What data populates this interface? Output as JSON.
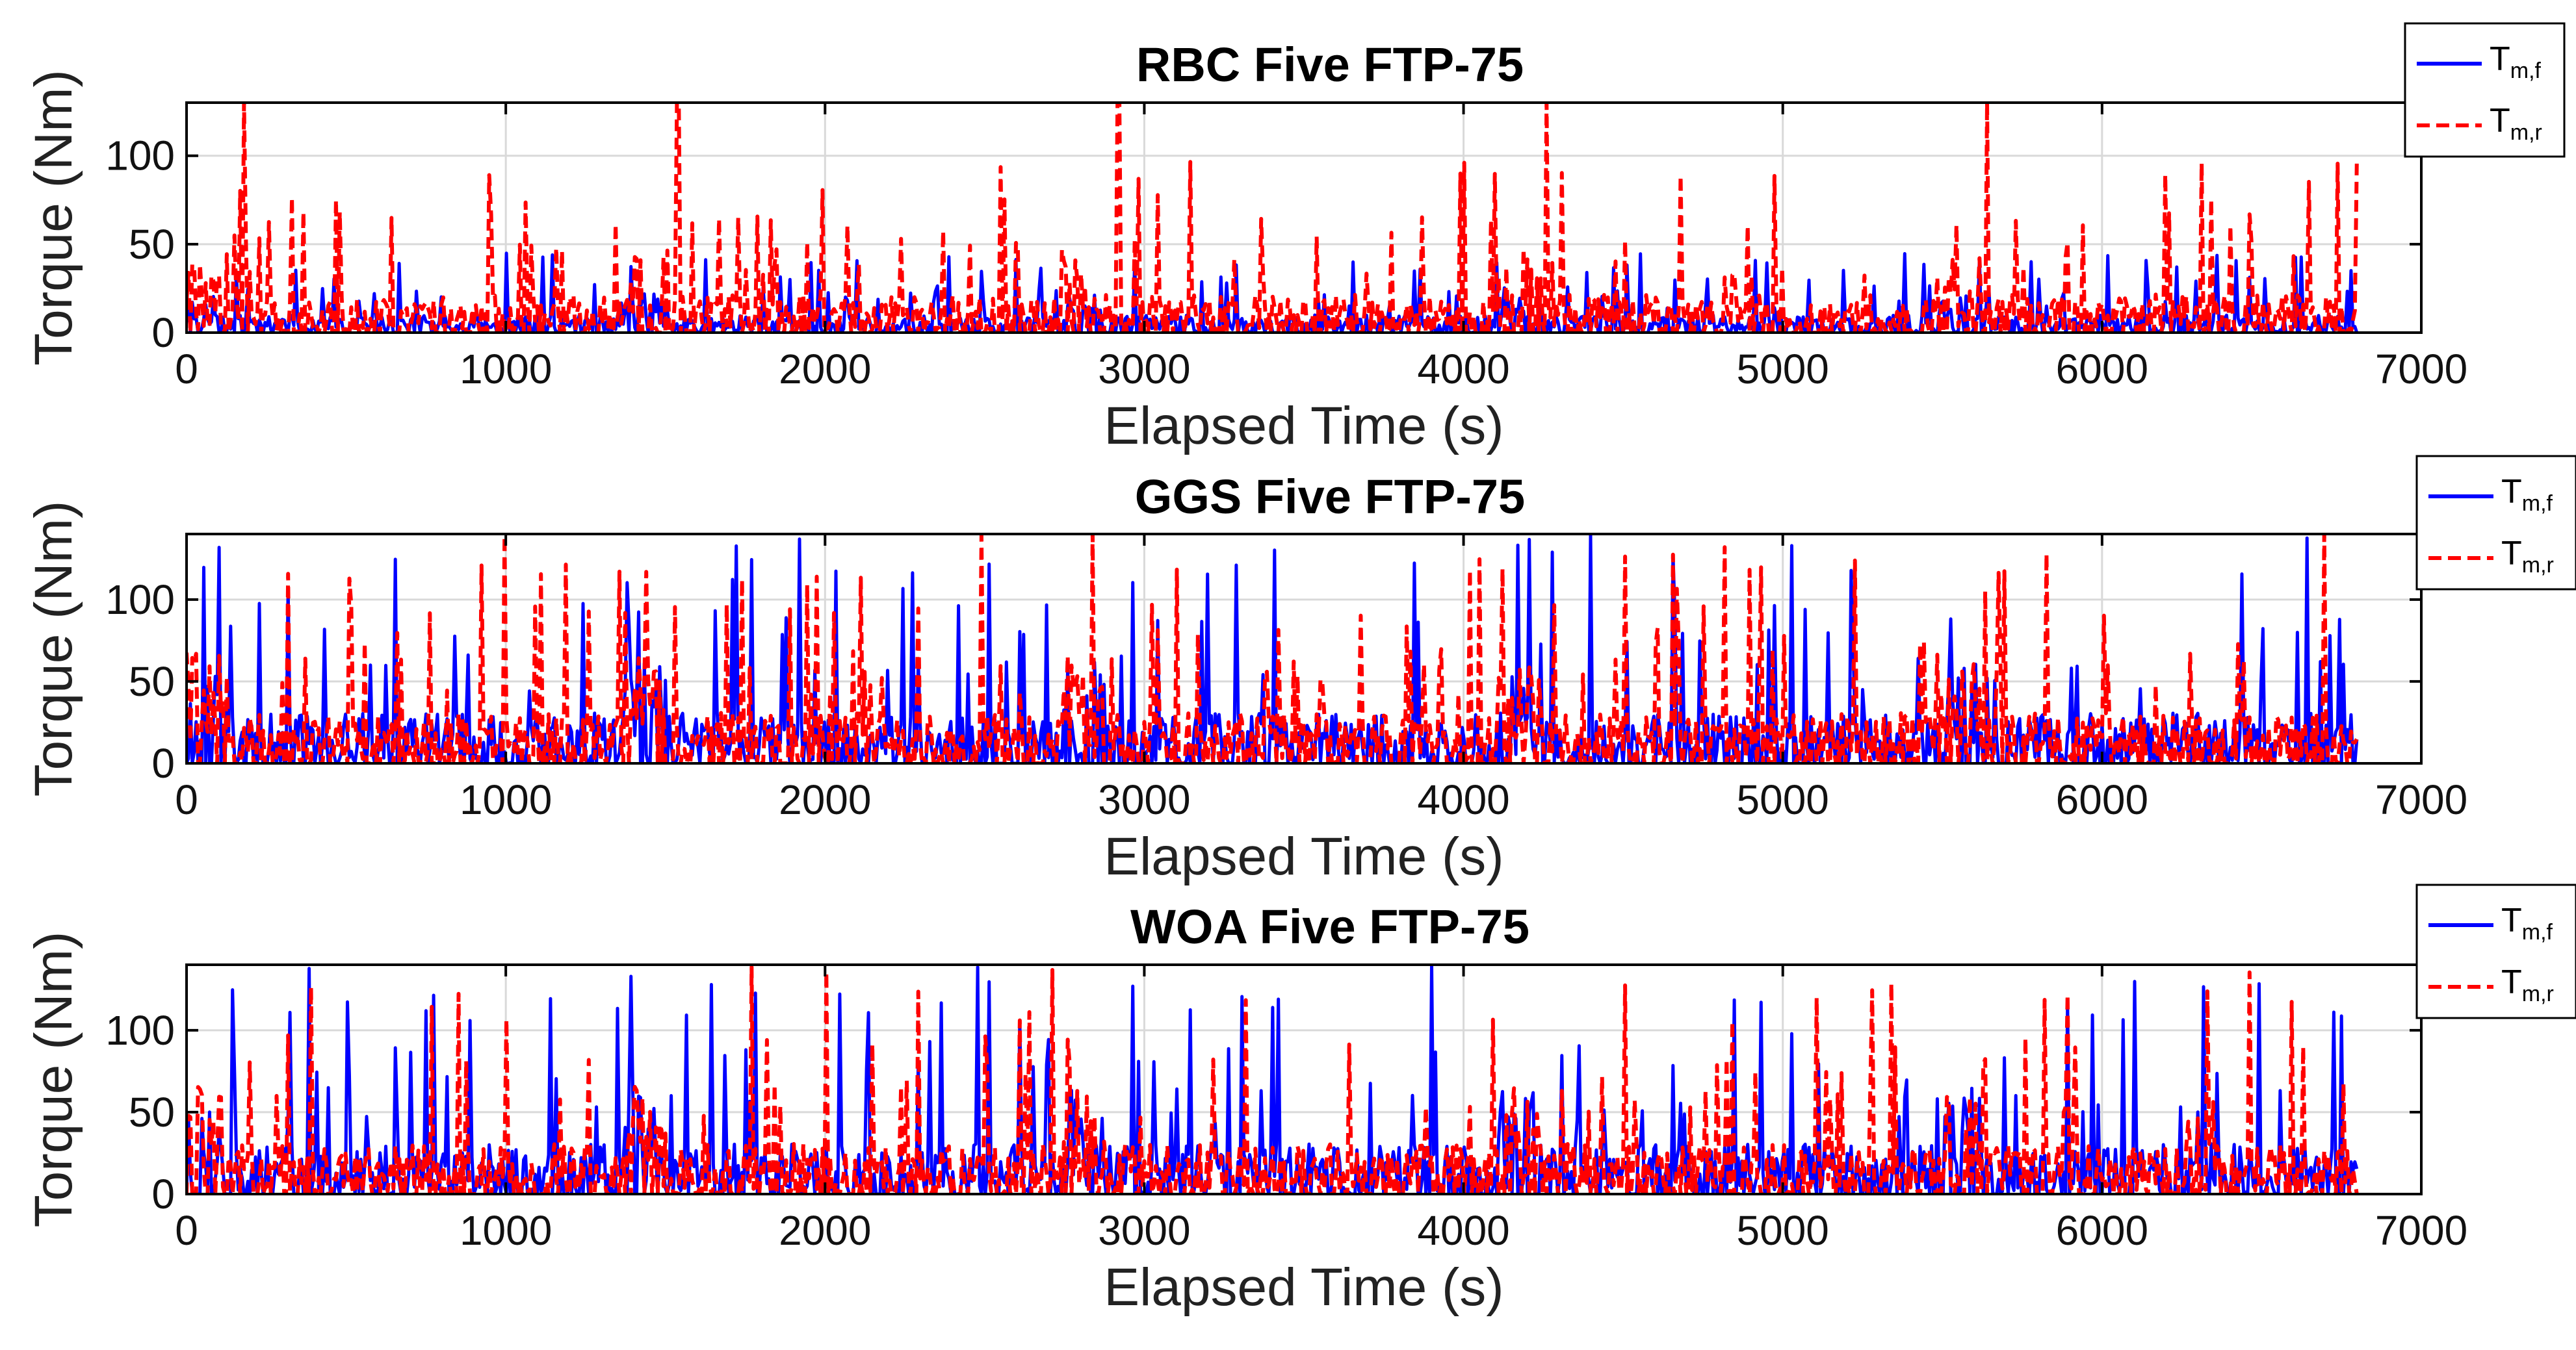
{
  "colors": {
    "front": "#0000ff",
    "rear": "#ff0000",
    "grid": "#d9d9d9",
    "axis": "#000000"
  },
  "chart_data": [
    {
      "type": "line",
      "title": "RBC Five FTP-75",
      "xlabel": "Elapsed Time (s)",
      "ylabel": "Torque (Nm)",
      "xlim": [
        0,
        7000
      ],
      "ylim": [
        0,
        130
      ],
      "xticks": [
        0,
        1000,
        2000,
        3000,
        4000,
        5000,
        6000,
        7000
      ],
      "xtick_labels": [
        "0",
        "1000",
        "2000",
        "3000",
        "4000",
        "5000",
        "6000",
        "7000"
      ],
      "yticks": [
        0,
        50,
        100
      ],
      "ytick_labels": [
        "0",
        "50",
        "100"
      ],
      "grid": true,
      "legend_position": "top-right outside",
      "series": [
        {
          "name": "T_m,f",
          "label_base": "T",
          "label_sub": "m,f",
          "style": "solid",
          "color": "#0000ff",
          "peak": 45,
          "seed": 11
        },
        {
          "name": "T_m,r",
          "label_base": "T",
          "label_sub": "m,r",
          "style": "dashed",
          "color": "#ff0000",
          "peak": 98,
          "spikes_at": [
            180,
            1540,
            2920,
            4260,
            5640
          ],
          "spike_value": 130,
          "seed": 23
        }
      ]
    },
    {
      "type": "line",
      "title": "GGS Five FTP-75",
      "xlabel": "Elapsed Time (s)",
      "ylabel": "Torque (Nm)",
      "xlim": [
        0,
        7000
      ],
      "ylim": [
        0,
        140
      ],
      "xticks": [
        0,
        1000,
        2000,
        3000,
        4000,
        5000,
        6000,
        7000
      ],
      "xtick_labels": [
        "0",
        "1000",
        "2000",
        "3000",
        "4000",
        "5000",
        "6000",
        "7000"
      ],
      "yticks": [
        0,
        50,
        100
      ],
      "ytick_labels": [
        "0",
        "50",
        "100"
      ],
      "grid": true,
      "legend_position": "top-right outside",
      "series": [
        {
          "name": "T_m,f",
          "label_base": "T",
          "label_sub": "m,f",
          "style": "solid",
          "color": "#0000ff",
          "peak": 140,
          "seed": 37
        },
        {
          "name": "T_m,r",
          "label_base": "T",
          "label_sub": "m,r",
          "style": "dashed",
          "color": "#ff0000",
          "peak": 140,
          "seed": 41
        }
      ]
    },
    {
      "type": "line",
      "title": "WOA Five FTP-75",
      "xlabel": "Elapsed Time (s)",
      "ylabel": "Torque (Nm)",
      "xlim": [
        0,
        7000
      ],
      "ylim": [
        0,
        140
      ],
      "xticks": [
        0,
        1000,
        2000,
        3000,
        4000,
        5000,
        6000,
        7000
      ],
      "xtick_labels": [
        "0",
        "1000",
        "2000",
        "3000",
        "4000",
        "5000",
        "6000",
        "7000"
      ],
      "yticks": [
        0,
        50,
        100
      ],
      "ytick_labels": [
        "0",
        "50",
        "100"
      ],
      "grid": true,
      "legend_position": "top-right outside",
      "series": [
        {
          "name": "T_m,f",
          "label_base": "T",
          "label_sub": "m,f",
          "style": "solid",
          "color": "#0000ff",
          "peak": 140,
          "seed": 53
        },
        {
          "name": "T_m,r",
          "label_base": "T",
          "label_sub": "m,r",
          "style": "dashed",
          "color": "#ff0000",
          "peak": 140,
          "seed": 59
        }
      ]
    }
  ]
}
